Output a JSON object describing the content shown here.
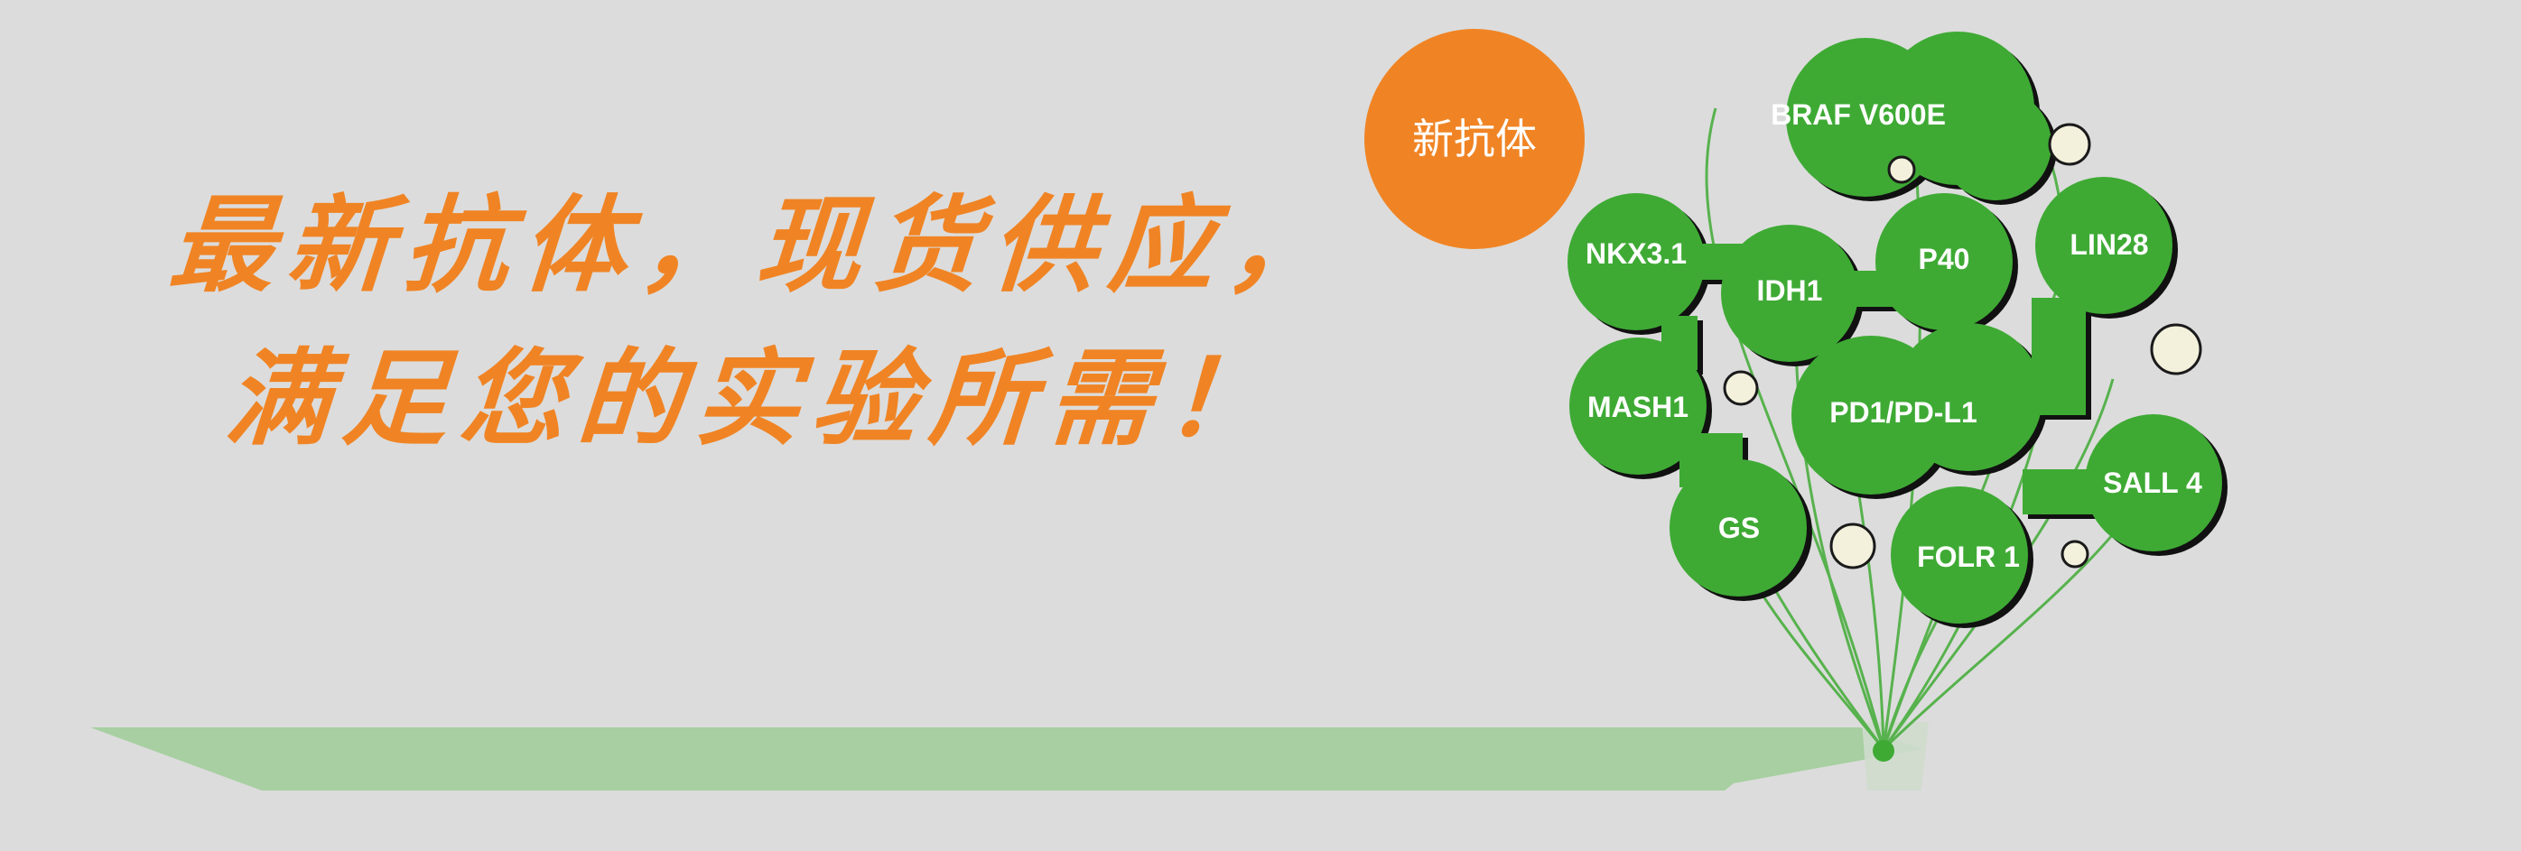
{
  "headline": {
    "line1": "最新抗体，现货供应，",
    "line2": "满足您的实验所需！"
  },
  "badge": {
    "label": "新抗体"
  },
  "antibodies": [
    "BRAF V600E",
    "NKX3.1",
    "IDH1",
    "P40",
    "LIN28",
    "MASH1",
    "PD1/PD-L1",
    "GS",
    "FOLR 1",
    "SALL 4"
  ],
  "colors": {
    "background": "#dcdcdc",
    "accent_orange": "#f08424",
    "balloon_green": "#3eaa34",
    "shadow_green": "#a7cfa1",
    "pearl": "#f3f0dc"
  }
}
